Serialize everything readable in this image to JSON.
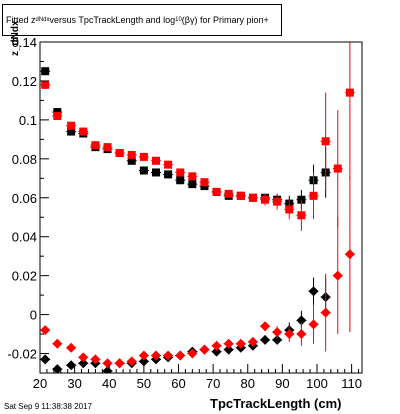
{
  "title": {
    "part1": "Fitted  z",
    "sub1": "dNdx",
    "part2": " versus TpcTrackLength and log",
    "sub2": "10",
    "part3": "(βγ) for Primary pion+"
  },
  "footer": "Sat Sep  9 11:38:38 2017",
  "chart_data": {
    "type": "scatter",
    "xlabel": "TpcTrackLength (cm)",
    "ylabel": "z_dNdx",
    "xlim": [
      20,
      113
    ],
    "ylim": [
      -0.03,
      0.14
    ],
    "xticks": [
      20,
      30,
      40,
      50,
      60,
      70,
      80,
      90,
      100,
      110
    ],
    "yticks": [
      -0.02,
      0,
      0.02,
      0.04,
      0.06,
      0.08,
      0.1,
      0.12,
      0.14
    ],
    "ytick_labels": [
      "-0.02",
      "0",
      "0.02",
      "0.04",
      "0.06",
      "0.08",
      "0.1",
      "0.12",
      "0.14"
    ],
    "grid": false,
    "series": [
      {
        "marker": "square",
        "color": "#000000",
        "x": [
          21.5,
          25,
          29,
          32.5,
          36,
          39.5,
          43,
          46.5,
          50,
          53.5,
          57,
          60.5,
          64,
          67.5,
          71,
          74.5,
          78,
          81.5,
          85,
          88.5,
          92,
          95.5,
          99,
          102.5
        ],
        "y": [
          0.125,
          0.104,
          0.094,
          0.093,
          0.086,
          0.085,
          0.083,
          0.079,
          0.074,
          0.073,
          0.072,
          0.069,
          0.067,
          0.066,
          0.063,
          0.061,
          0.061,
          0.06,
          0.06,
          0.059,
          0.057,
          0.059,
          0.069,
          0.073
        ],
        "err": [
          0.002,
          0.002,
          0.002,
          0.002,
          0.002,
          0.002,
          0.002,
          0.002,
          0.002,
          0.002,
          0.002,
          0.002,
          0.002,
          0.002,
          0.002,
          0.002,
          0.002,
          0.002,
          0.002,
          0.003,
          0.004,
          0.005,
          0.008,
          0.013
        ]
      },
      {
        "marker": "square",
        "color": "#ff0000",
        "x": [
          21.5,
          25,
          29,
          32.5,
          36,
          39.5,
          43,
          46.5,
          50,
          53.5,
          57,
          60.5,
          64,
          67.5,
          71,
          74.5,
          78,
          81.5,
          85,
          88.5,
          92,
          95.5,
          99,
          102.5,
          106,
          109.5
        ],
        "y": [
          0.118,
          0.102,
          0.097,
          0.094,
          0.087,
          0.086,
          0.083,
          0.082,
          0.081,
          0.079,
          0.077,
          0.073,
          0.071,
          0.068,
          0.063,
          0.062,
          0.061,
          0.06,
          0.059,
          0.058,
          0.054,
          0.051,
          0.061,
          0.089,
          0.075,
          0.114
        ],
        "err": [
          0.002,
          0.002,
          0.002,
          0.002,
          0.002,
          0.002,
          0.002,
          0.002,
          0.002,
          0.002,
          0.002,
          0.002,
          0.002,
          0.002,
          0.002,
          0.002,
          0.002,
          0.002,
          0.003,
          0.004,
          0.005,
          0.008,
          0.012,
          0.025,
          0.03,
          0.045
        ]
      },
      {
        "marker": "diamond",
        "color": "#000000",
        "x": [
          21.5,
          25,
          29,
          32.5,
          36,
          39.5,
          43,
          46.5,
          50,
          53.5,
          57,
          60.5,
          64,
          67.5,
          71,
          74.5,
          78,
          81.5,
          85,
          88.5,
          92,
          95.5,
          99,
          102.5
        ],
        "y": [
          -0.023,
          -0.028,
          -0.026,
          -0.025,
          -0.025,
          -0.029,
          -0.025,
          -0.025,
          -0.024,
          -0.023,
          -0.022,
          -0.021,
          -0.019,
          -0.018,
          -0.019,
          -0.018,
          -0.017,
          -0.016,
          -0.013,
          -0.013,
          -0.008,
          -0.003,
          0.012,
          0.009
        ],
        "err": [
          0.001,
          0.001,
          0.001,
          0.001,
          0.001,
          0.001,
          0.001,
          0.001,
          0.001,
          0.001,
          0.001,
          0.001,
          0.001,
          0.001,
          0.001,
          0.001,
          0.001,
          0.001,
          0.002,
          0.002,
          0.004,
          0.005,
          0.007,
          0.01
        ]
      },
      {
        "marker": "diamond",
        "color": "#ff0000",
        "x": [
          21.5,
          25,
          29,
          32.5,
          36,
          39.5,
          43,
          46.5,
          50,
          53.5,
          57,
          60.5,
          64,
          67.5,
          71,
          74.5,
          78,
          81.5,
          85,
          88.5,
          92,
          95.5,
          99,
          102.5,
          106,
          109.5
        ],
        "y": [
          -0.008,
          -0.015,
          -0.017,
          -0.022,
          -0.023,
          -0.025,
          -0.025,
          -0.024,
          -0.021,
          -0.021,
          -0.021,
          -0.021,
          -0.02,
          -0.018,
          -0.016,
          -0.015,
          -0.015,
          -0.014,
          -0.006,
          -0.009,
          -0.01,
          -0.01,
          -0.005,
          0.001,
          0.02,
          0.031
        ],
        "err": [
          0.001,
          0.001,
          0.001,
          0.001,
          0.001,
          0.001,
          0.001,
          0.001,
          0.001,
          0.001,
          0.001,
          0.001,
          0.001,
          0.001,
          0.001,
          0.001,
          0.001,
          0.002,
          0.002,
          0.003,
          0.004,
          0.006,
          0.01,
          0.02,
          0.03,
          0.04
        ]
      }
    ]
  }
}
